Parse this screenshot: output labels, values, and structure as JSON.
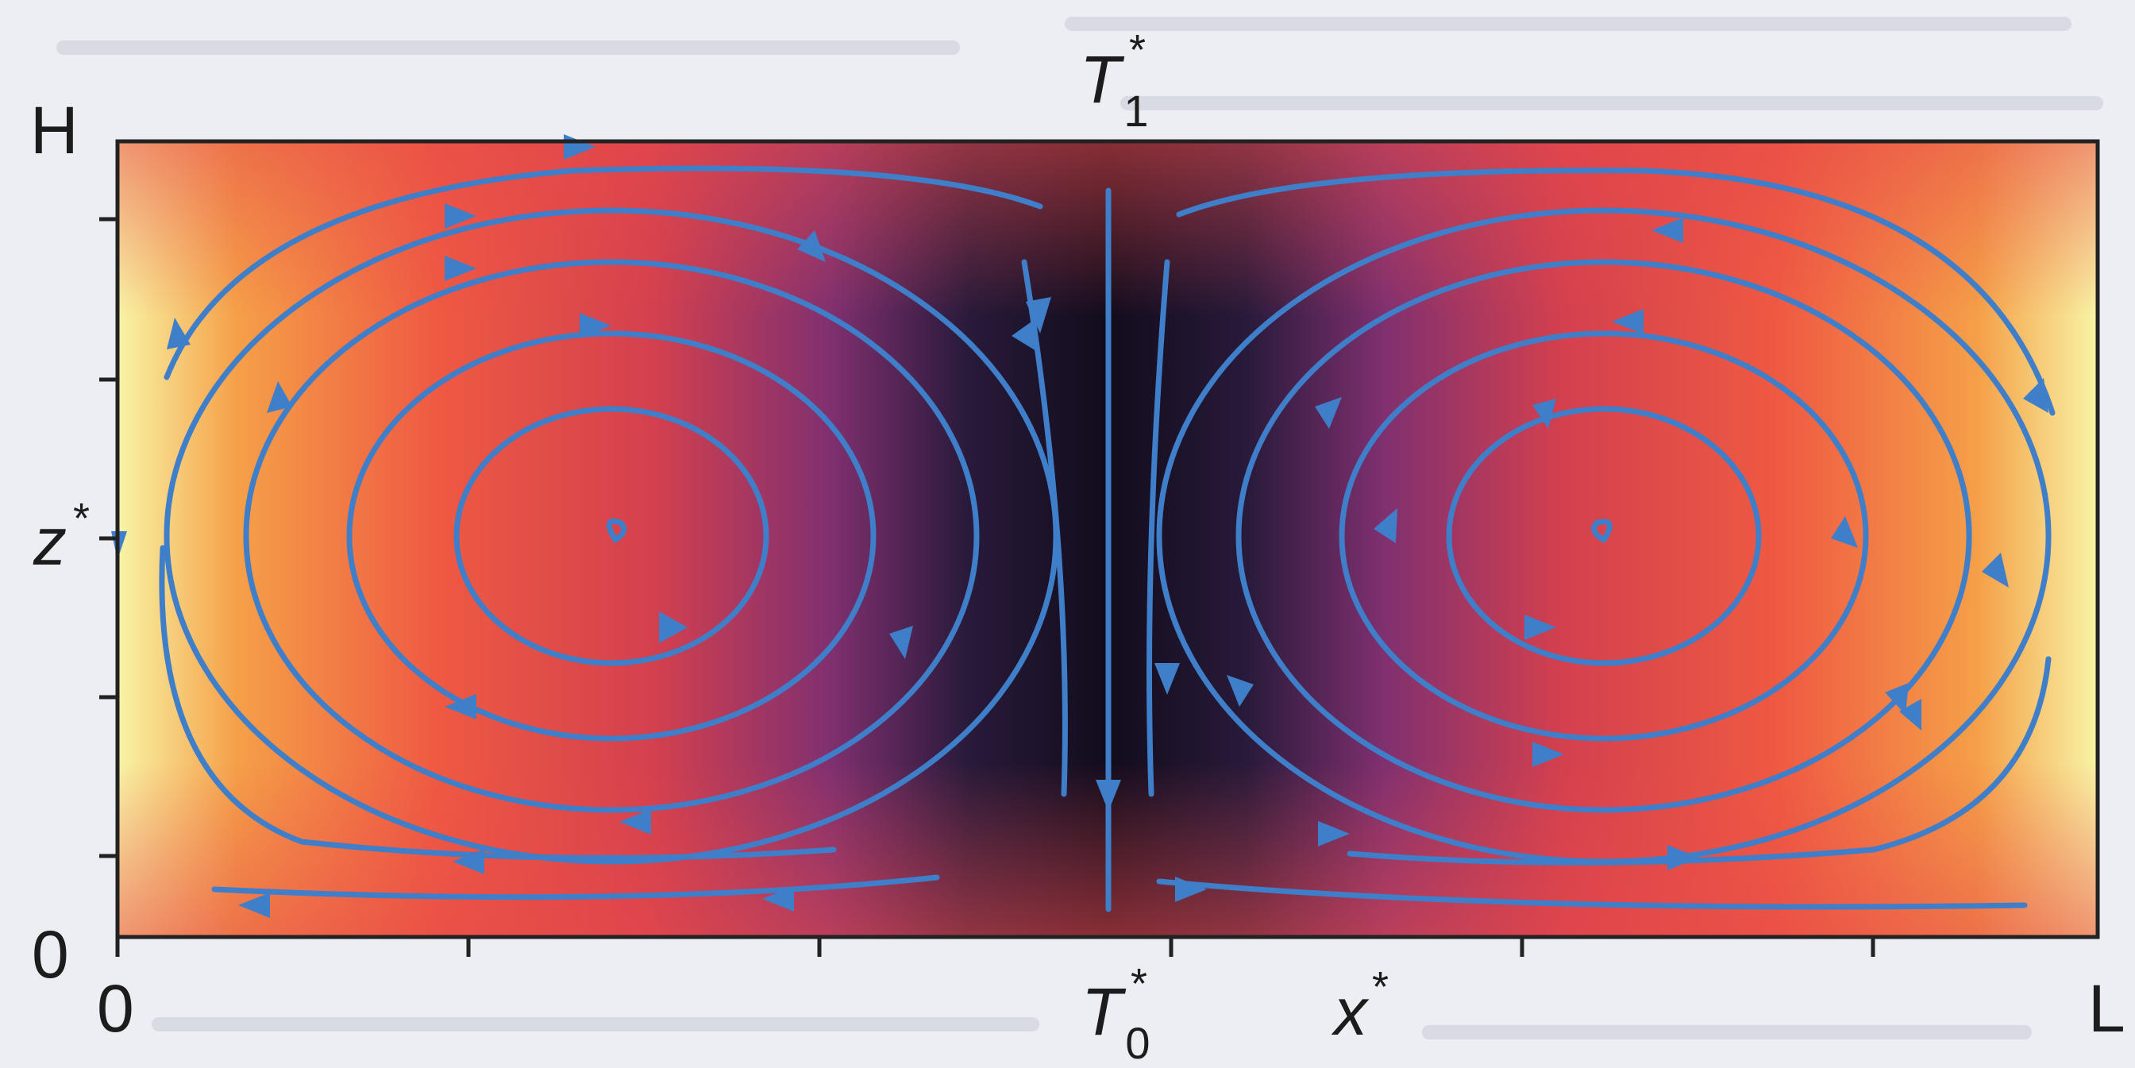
{
  "figure": {
    "top_temperature_symbol": "T",
    "top_temperature_subscript": "1",
    "bottom_temperature_symbol": "T",
    "bottom_temperature_subscript": "0",
    "star": "*",
    "x_axis_symbol": "x",
    "z_axis_symbol": "z",
    "x_axis_start": "0",
    "x_axis_end": "L",
    "z_axis_start": "0",
    "z_axis_end": "H",
    "colors": {
      "hot": "#f0f08a",
      "warm": "#f6903a",
      "mid": "#e8504e",
      "cool": "#7a2a6a",
      "cold": "#160f24",
      "streamline": "#3f7ec9"
    },
    "regions": [
      {
        "name": "left-convection-cell",
        "rotation": "clockwise"
      },
      {
        "name": "right-convection-cell",
        "rotation": "counter-clockwise"
      }
    ]
  }
}
